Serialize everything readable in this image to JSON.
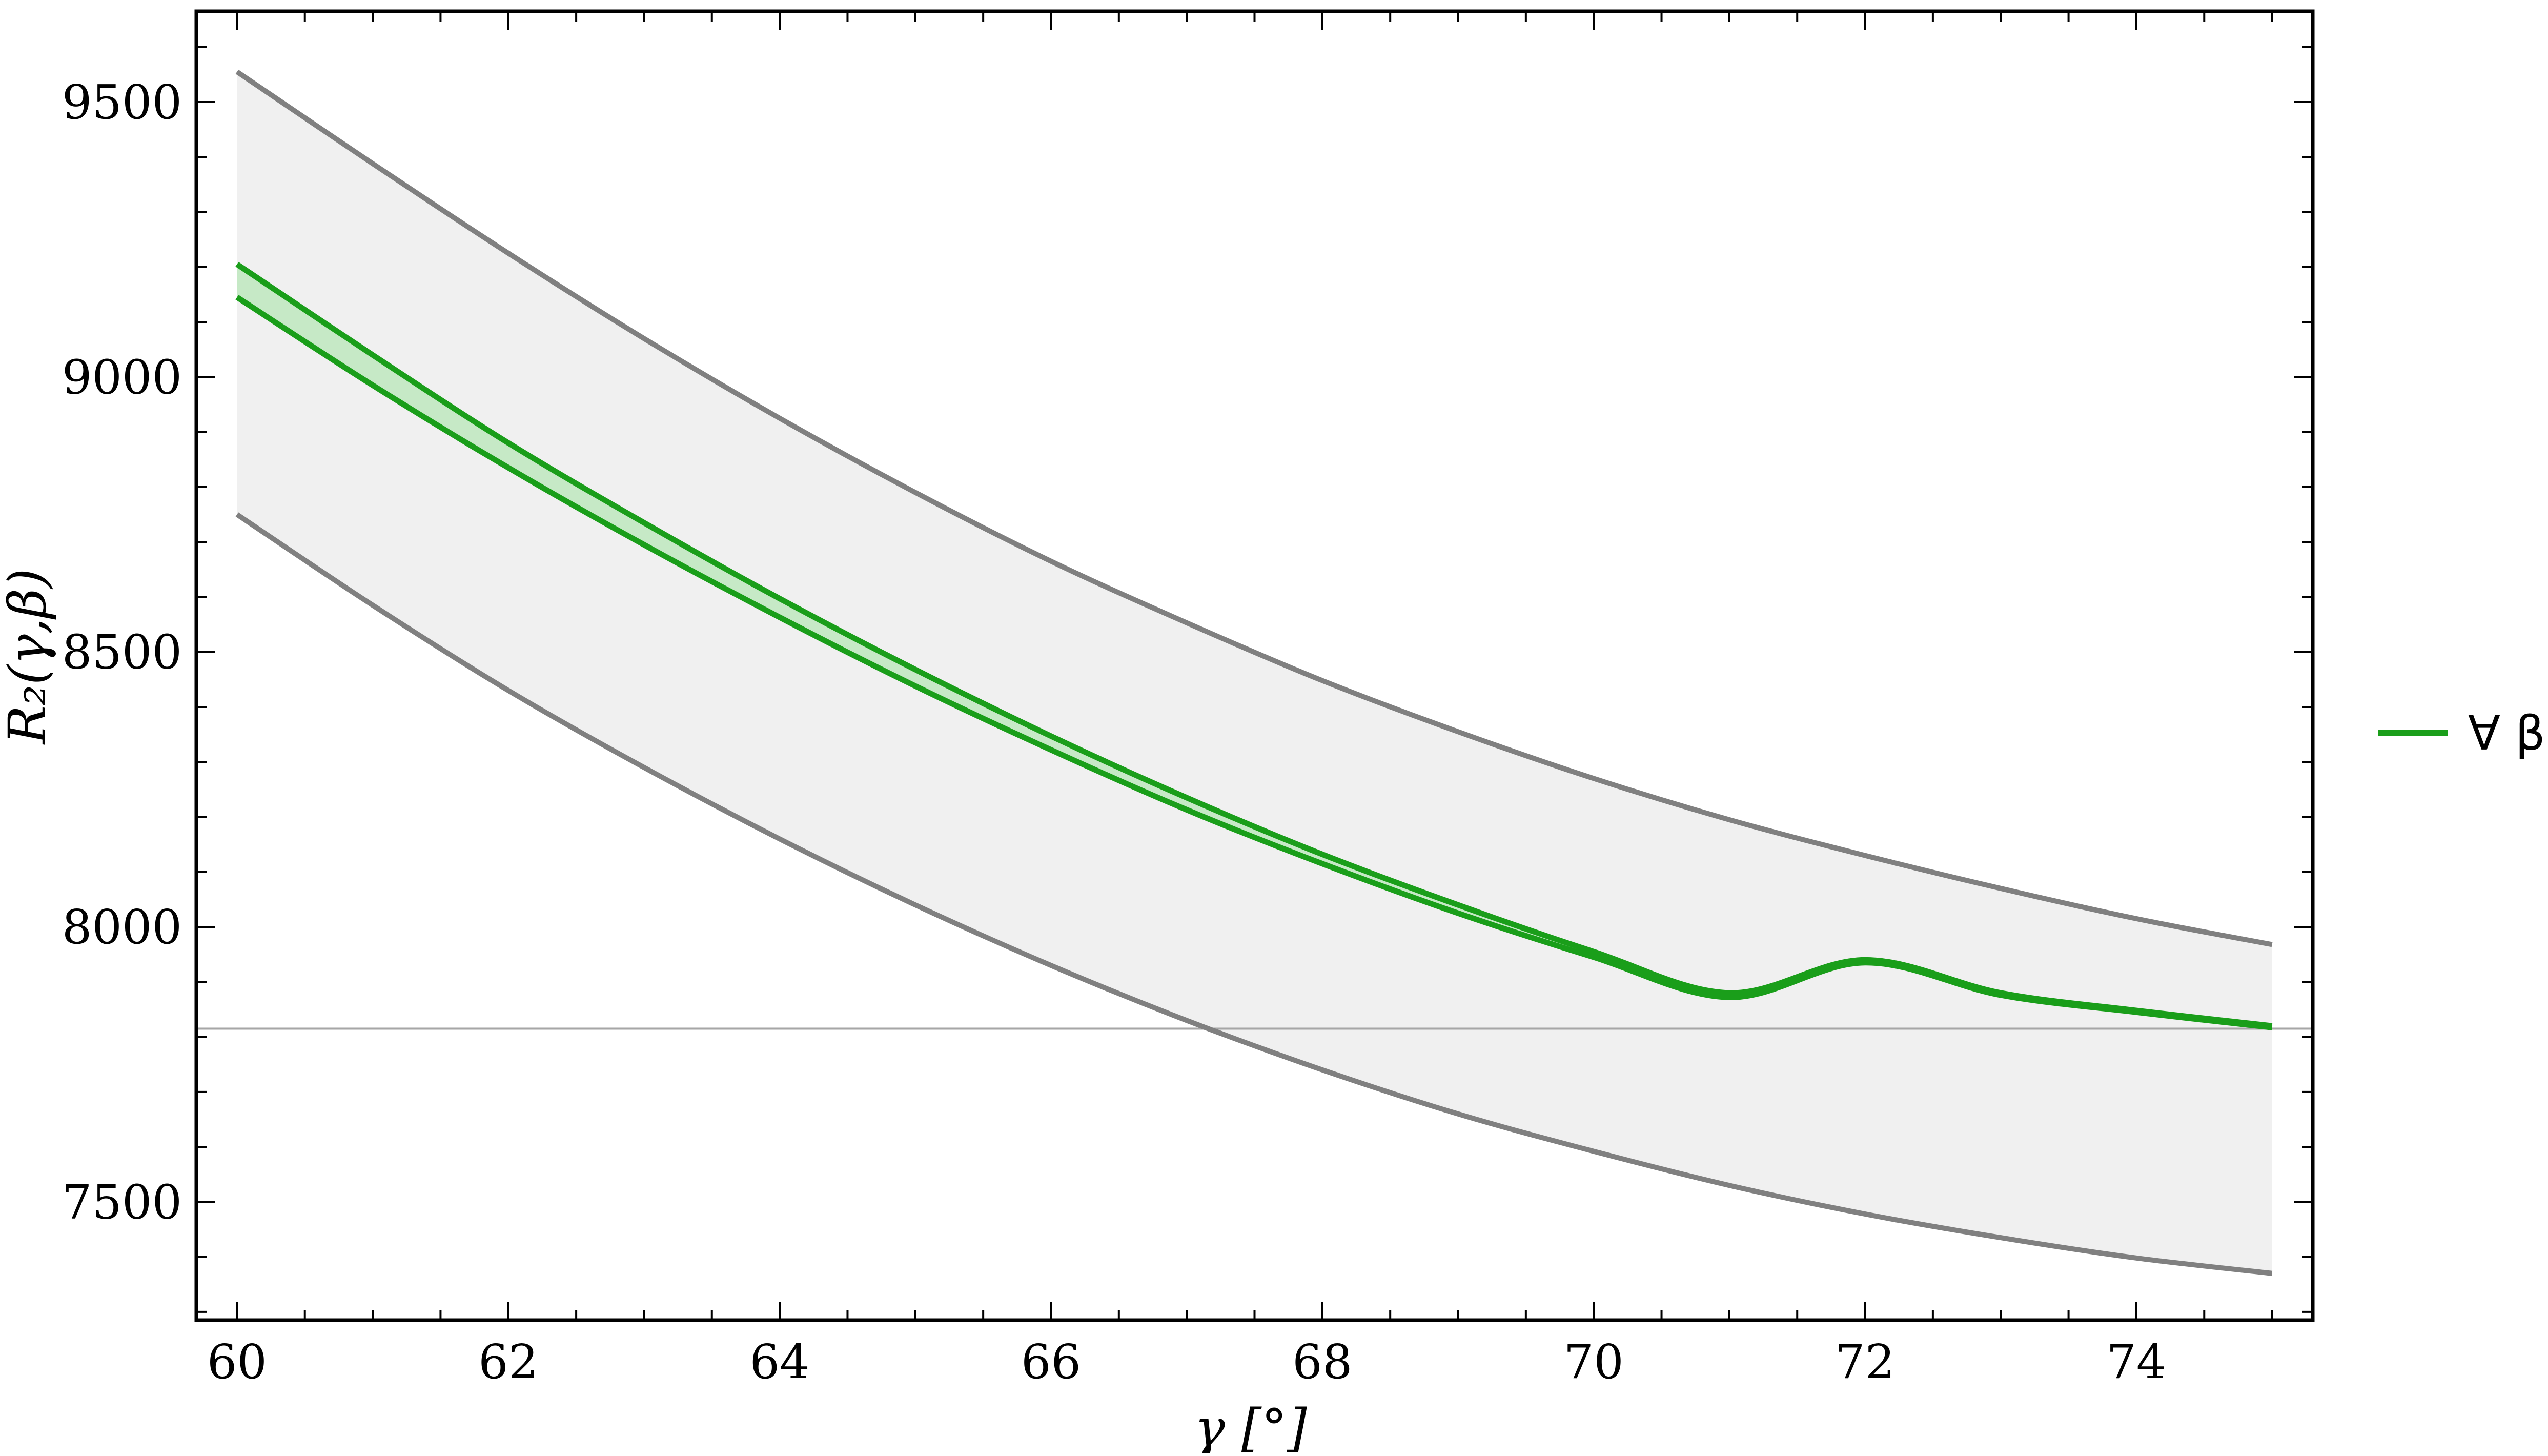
{
  "chart_data": {
    "type": "line",
    "xlabel": "γ [°]",
    "ylabel": "R₂(γ,β)",
    "xlim": [
      59.7,
      75.3
    ],
    "ylim": [
      7285,
      9665
    ],
    "xticks": [
      60,
      62,
      64,
      66,
      68,
      70,
      72,
      74
    ],
    "xtick_labels": [
      "60",
      "62",
      "64",
      "66",
      "68",
      "70",
      "72",
      "74"
    ],
    "yticks": [
      7500,
      8000,
      8500,
      9000,
      9500
    ],
    "ytick_labels": [
      "7500",
      "8000",
      "8500",
      "9000",
      "9500"
    ],
    "grid": false,
    "legend_position": "right",
    "legend": [
      {
        "label": "∀ β",
        "color": "#1a9e1a"
      }
    ],
    "reference_line": {
      "y": 7815,
      "color": "#a6a6a6"
    },
    "x": [
      60,
      61,
      62,
      63,
      64,
      65,
      66,
      67,
      68,
      69,
      70,
      71,
      72,
      73,
      74,
      75
    ],
    "band": {
      "name": "outer band",
      "fill": "#f0f0f0",
      "stroke": "#808080",
      "upper": [
        9555,
        9388,
        9225,
        9070,
        8925,
        8790,
        8665,
        8553,
        8448,
        8355,
        8270,
        8195,
        8130,
        8070,
        8015,
        7968
      ],
      "lower": [
        8750,
        8585,
        8430,
        8290,
        8160,
        8040,
        7930,
        7830,
        7740,
        7660,
        7592,
        7530,
        7478,
        7435,
        7398,
        7370
      ]
    },
    "series": [
      {
        "label": "∀ β",
        "color": "#1a9e1a",
        "fill": "#c6e9c6",
        "upper": [
          9205,
          9040,
          8880,
          8735,
          8597,
          8468,
          8347,
          8235,
          8132,
          8040,
          7955,
          7880,
          7940,
          7880,
          7848,
          7820
        ],
        "lower": [
          9145,
          8985,
          8835,
          8695,
          8563,
          8438,
          8322,
          8213,
          8115,
          8025,
          7945,
          7872,
          7935,
          7876,
          7845,
          7817
        ]
      }
    ]
  }
}
